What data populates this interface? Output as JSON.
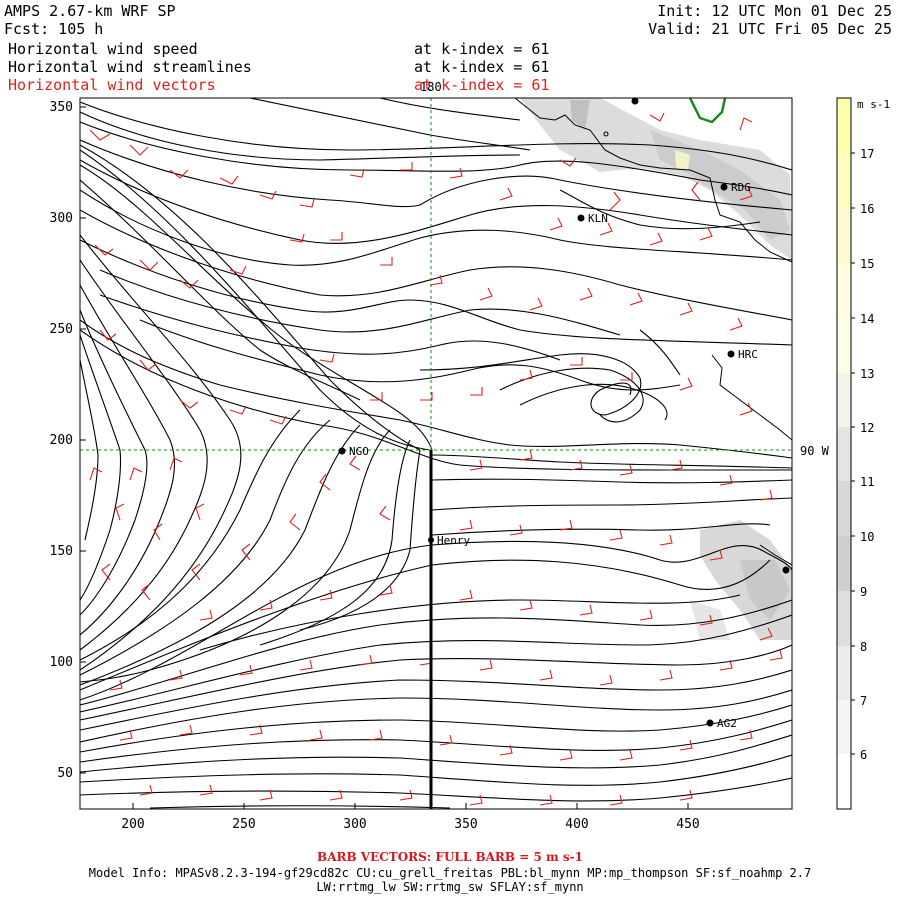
{
  "header": {
    "model": "AMPS 2.67-km WRF SP",
    "forecast": "Fcst: 105 h",
    "init": "Init: 12 UTC Mon 01 Dec 25",
    "valid": "Valid: 21 UTC Fri 05 Dec 25",
    "fields": [
      {
        "name": "Horizontal wind speed",
        "level": "at k-index = 61"
      },
      {
        "name": "Horizontal wind streamlines",
        "level": "at k-index = 61"
      },
      {
        "name": "Horizontal wind vectors",
        "level": "at k-index = 61"
      }
    ]
  },
  "map": {
    "x_ticks": [
      "200",
      "250",
      "300",
      "350",
      "400",
      "450"
    ],
    "y_ticks": [
      "350",
      "300",
      "250",
      "200",
      "150",
      "100",
      "50"
    ],
    "grid_labels": {
      "meridian": "180",
      "parallel": "90 W"
    },
    "stations": [
      {
        "id": "RDG"
      },
      {
        "id": "KLN"
      },
      {
        "id": "HRC"
      },
      {
        "id": "NGO"
      },
      {
        "id": "Henry"
      },
      {
        "id": "AG2"
      },
      {
        "id": ""
      }
    ]
  },
  "colorbar": {
    "unit": "m s-1",
    "labels": [
      "17",
      "16",
      "15",
      "14",
      "13",
      "12",
      "11",
      "10",
      "9",
      "8",
      "7",
      "6"
    ],
    "colors": [
      "#ffffb0",
      "#fffcc0",
      "#fffbd0",
      "#fffce0",
      "#fdfde8",
      "#f4f4e8",
      "#e4e4e4",
      "#d8d8d8",
      "#cfcfcf",
      "#dedede",
      "#ebebeb",
      "#f5f5f5",
      "#ffffff"
    ]
  },
  "footer": {
    "barb": "BARB VECTORS: FULL BARB = 5 m s-1",
    "model_info": "Model Info: MPASv8.2.3-194-gf29cd82c CU:cu_grell_freitas PBL:bl_mynn MP:mp_thompson SF:sf_noahmp 2.7",
    "model_info2": "LW:rrtmg_lw SW:rrtmg_sw SFLAY:sf_mynn"
  }
}
